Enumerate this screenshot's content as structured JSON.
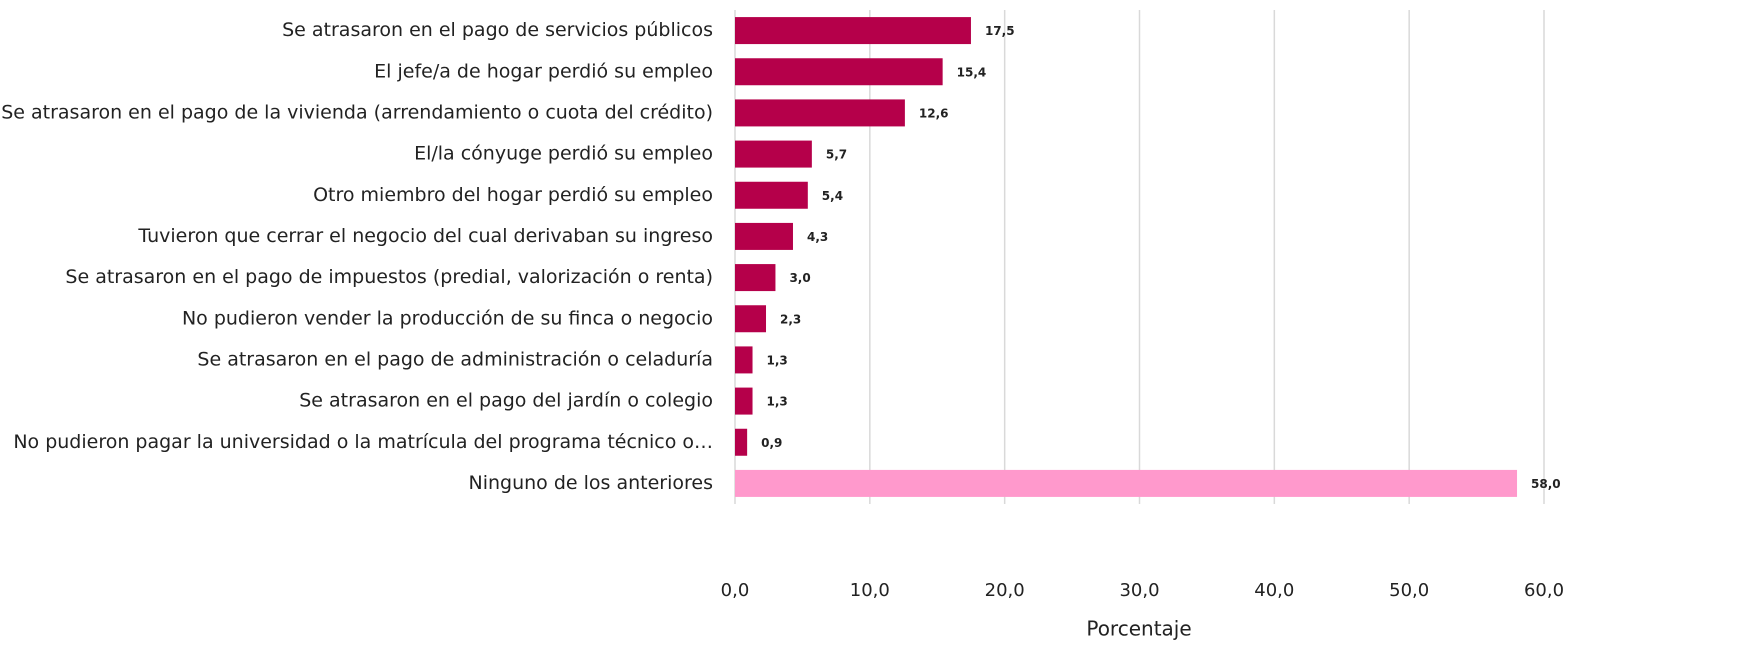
{
  "chart_data": {
    "type": "bar",
    "orientation": "horizontal",
    "categories": [
      "Se atrasaron en el pago de servicios públicos",
      "El jefe/a de hogar perdió su empleo",
      "Se atrasaron en el pago de la vivienda (arrendamiento o cuota del crédito)",
      "El/la cónyuge perdió su empleo",
      "Otro miembro del hogar perdió su empleo",
      "Tuvieron que cerrar el negocio del cual derivaban su ingreso",
      "Se atrasaron en el pago de impuestos (predial, valorización o renta)",
      "No pudieron vender la producción de su finca o negocio",
      "Se atrasaron en el pago de administración o celaduría",
      "Se atrasaron en el pago del jardín o colegio",
      "No pudieron pagar la universidad o la matrícula del programa técnico o…",
      "Ninguno de los anteriores"
    ],
    "values": [
      17.5,
      15.4,
      12.6,
      5.7,
      5.4,
      4.3,
      3.0,
      2.3,
      1.3,
      1.3,
      0.9,
      58.0
    ],
    "value_labels": [
      "17,5",
      "15,4",
      "12,6",
      "5,7",
      "5,4",
      "4,3",
      "3,0",
      "2,3",
      "1,3",
      "1,3",
      "0,9",
      "58,0"
    ],
    "colors": [
      "#b5004a",
      "#b5004a",
      "#b5004a",
      "#b5004a",
      "#b5004a",
      "#b5004a",
      "#b5004a",
      "#b5004a",
      "#b5004a",
      "#b5004a",
      "#b5004a",
      "#ff99cc"
    ],
    "xlabel": "Porcentaje",
    "xlim": [
      0,
      60
    ],
    "xticks": [
      {
        "value": 0,
        "label": "0,0"
      },
      {
        "value": 10,
        "label": "10,0"
      },
      {
        "value": 20,
        "label": "20,0"
      },
      {
        "value": 30,
        "label": "30,0"
      },
      {
        "value": 40,
        "label": "40,0"
      },
      {
        "value": 50,
        "label": "50,0"
      },
      {
        "value": 60,
        "label": "60,0"
      }
    ],
    "grid": true
  }
}
